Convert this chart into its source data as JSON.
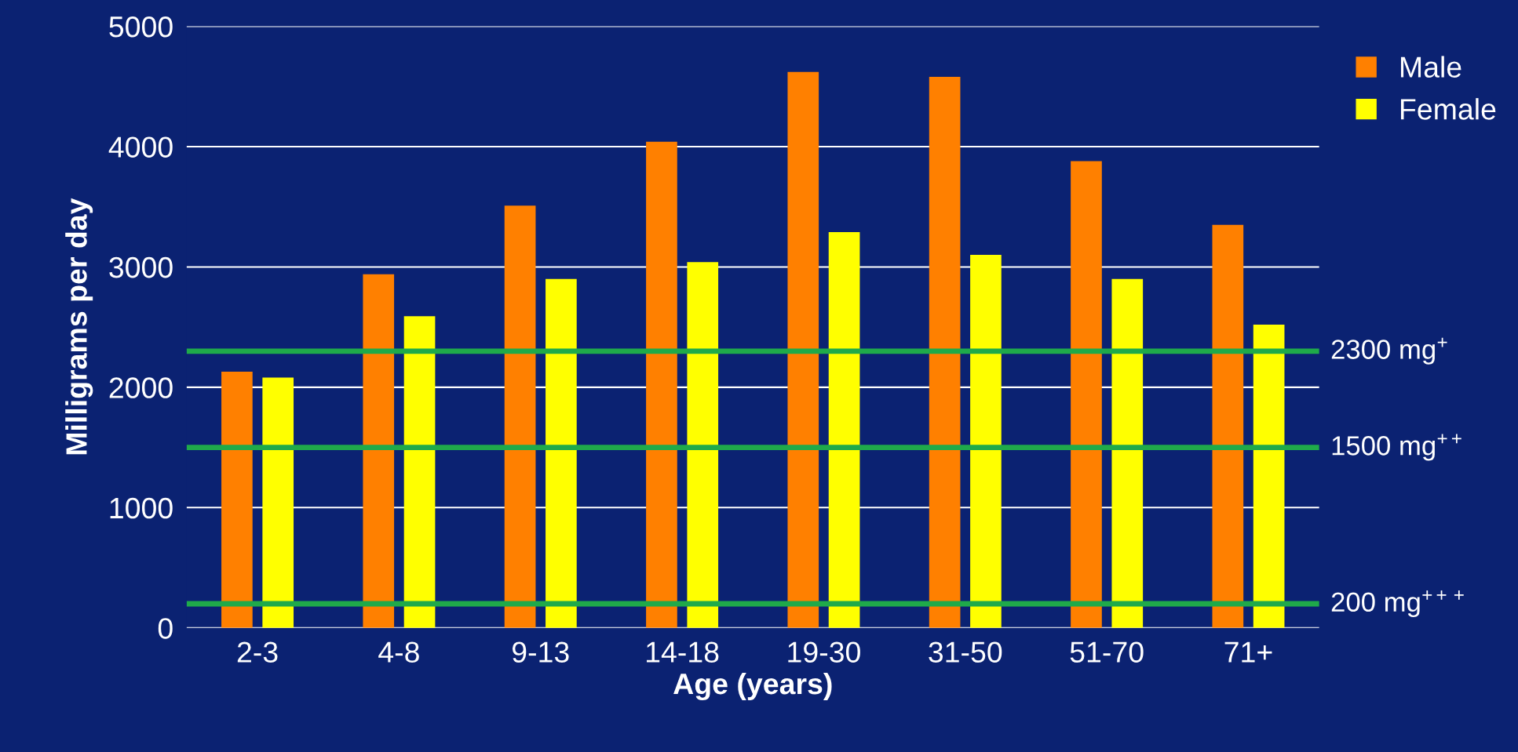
{
  "chart_data": {
    "type": "bar",
    "xlabel": "Age (years)",
    "ylabel": "Milligrams per day",
    "categories": [
      "2-3",
      "4-8",
      "9-13",
      "14-18",
      "19-30",
      "31-50",
      "51-70",
      "71+"
    ],
    "series": [
      {
        "name": "Male",
        "color": "#ff8000",
        "values": [
          2130,
          2940,
          3510,
          4040,
          4620,
          4580,
          3880,
          3350
        ]
      },
      {
        "name": "Female",
        "color": "#ffff00",
        "values": [
          2080,
          2590,
          2900,
          3040,
          3290,
          3100,
          2900,
          2520
        ]
      }
    ],
    "ylim": [
      0,
      5000
    ],
    "yticks": [
      0,
      1000,
      2000,
      3000,
      4000,
      5000
    ],
    "grid": "y",
    "legend": "top right",
    "ref_lines": [
      {
        "axis": "y",
        "value": 2300,
        "label": "2300 mg$^{+}$",
        "color": "#1faa4a",
        "line_style": "solid"
      },
      {
        "axis": "y",
        "value": 1500,
        "label": "1500 mg$^{++}$",
        "color": "#1faa4a",
        "line_style": "solid"
      },
      {
        "axis": "y",
        "value": 200,
        "label": "200 mg$^{+++}$",
        "color": "#1faa4a",
        "line_style": "solid"
      }
    ]
  }
}
